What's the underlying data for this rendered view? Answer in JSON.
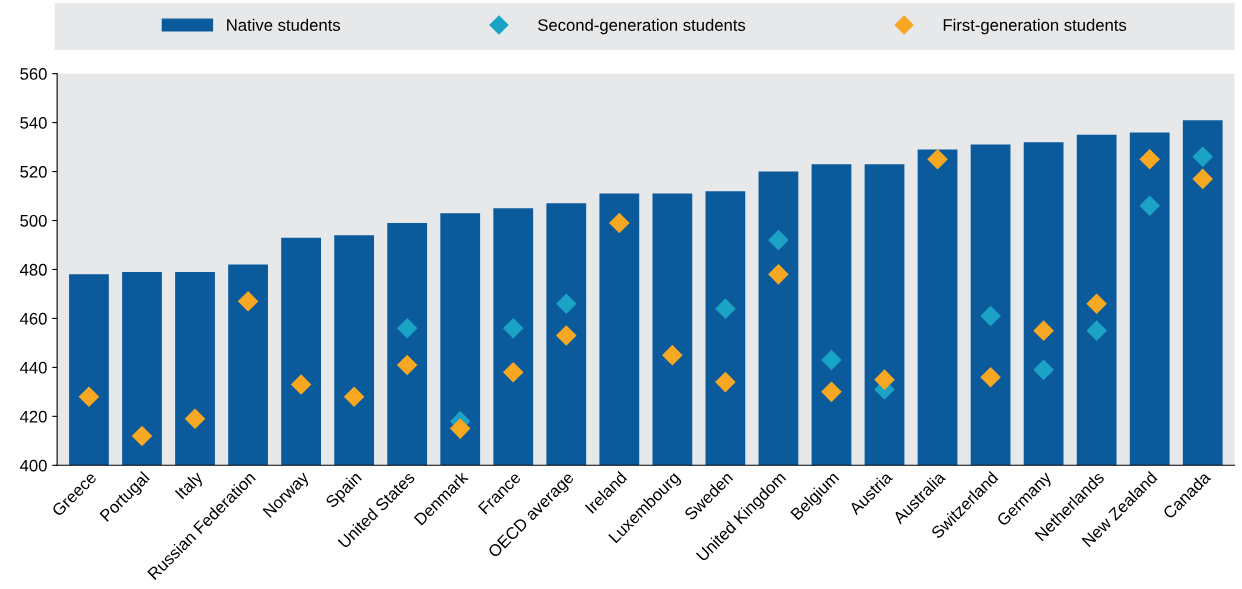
{
  "chart_data": {
    "type": "bar",
    "categories": [
      "Greece",
      "Portugal",
      "Italy",
      "Russian Federation",
      "Norway",
      "Spain",
      "United States",
      "Denmark",
      "France",
      "OECD average",
      "Ireland",
      "Luxembourg",
      "Sweden",
      "United Kingdom",
      "Belgium",
      "Austria",
      "Australia",
      "Switzerland",
      "Germany",
      "Netherlands",
      "New Zealand",
      "Canada"
    ],
    "series": [
      {
        "name": "Native students",
        "type": "bar",
        "color": "#0a5a9c",
        "values": [
          478,
          479,
          479,
          482,
          493,
          494,
          499,
          503,
          505,
          507,
          511,
          511,
          512,
          520,
          523,
          523,
          529,
          531,
          532,
          535,
          536,
          541
        ]
      },
      {
        "name": "Second-generation students",
        "type": "scatter",
        "color": "#1ba3c6",
        "values": [
          null,
          null,
          null,
          null,
          null,
          null,
          456,
          418,
          456,
          466,
          null,
          null,
          464,
          492,
          443,
          431,
          null,
          461,
          439,
          455,
          506,
          526
        ]
      },
      {
        "name": "First-generation students",
        "type": "scatter",
        "color": "#f7a823",
        "values": [
          428,
          412,
          419,
          467,
          433,
          428,
          441,
          415,
          438,
          453,
          499,
          445,
          434,
          478,
          430,
          435,
          525,
          436,
          455,
          466,
          525,
          517
        ]
      }
    ],
    "ylim": [
      400,
      560
    ],
    "yticks": [
      400,
      420,
      440,
      460,
      480,
      500,
      520,
      540,
      560
    ],
    "marker": "diamond",
    "legend": "top",
    "grid": false
  }
}
